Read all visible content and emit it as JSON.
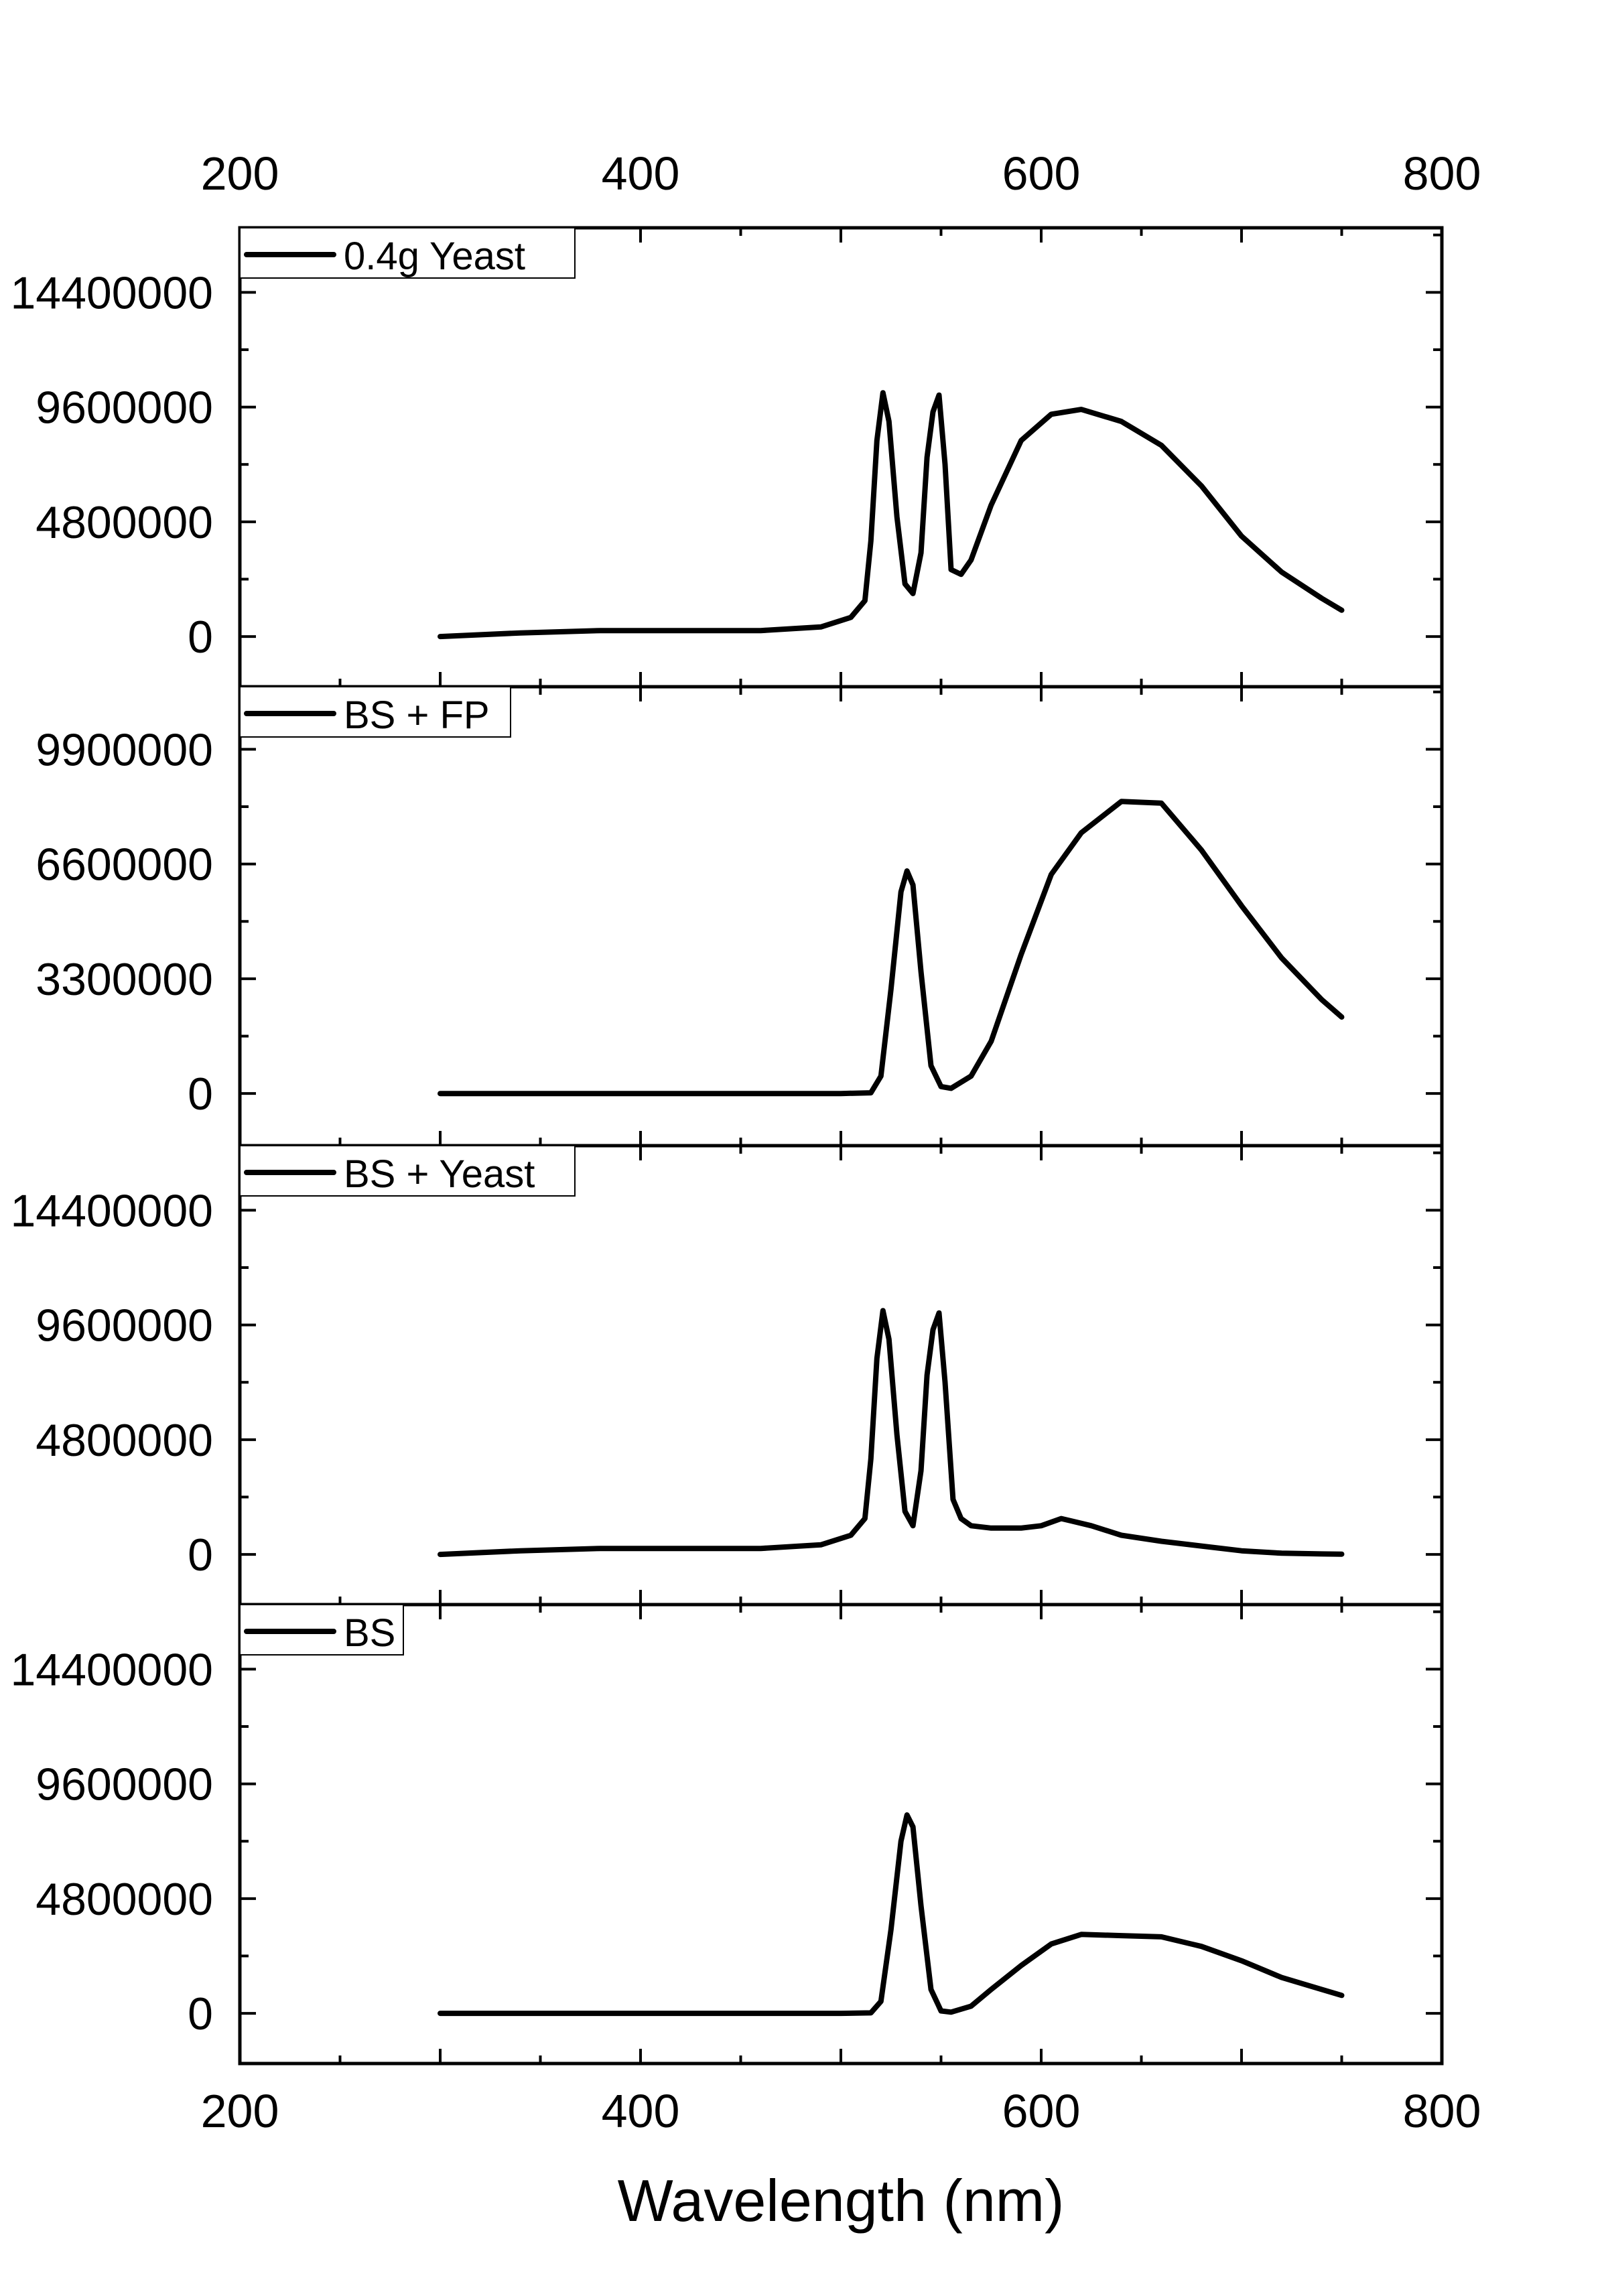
{
  "chart_data": {
    "type": "line",
    "xlabel": "Wavelength (nm)",
    "xlim": [
      200,
      800
    ],
    "x_ticks": [
      "200",
      "400",
      "600",
      "800"
    ],
    "grid": false,
    "line_color": "#000000",
    "panels": [
      {
        "legend": "0.4g Yeast",
        "ylim": [
          -2100000,
          17100000
        ],
        "y_ticks": [
          "0",
          "4800000",
          "9600000",
          "14400000"
        ],
        "y_tick_values": [
          0,
          4800000,
          9600000,
          14400000
        ],
        "series": [
          {
            "name": "0.4g Yeast",
            "x": [
              300,
              340,
              380,
              420,
              460,
              490,
              505,
              512,
              515,
              518,
              521,
              524,
              528,
              532,
              536,
              540,
              543,
              546,
              549,
              552,
              555,
              560,
              565,
              575,
              590,
              605,
              620,
              640,
              660,
              680,
              700,
              720,
              740,
              750
            ],
            "y": [
              0,
              150000,
              250000,
              250000,
              250000,
              400000,
              800000,
              1500000,
              4000000,
              8200000,
              10200000,
              9000000,
              5000000,
              2200000,
              1800000,
              3500000,
              7500000,
              9400000,
              10100000,
              7200000,
              2800000,
              2600000,
              3200000,
              5500000,
              8200000,
              9300000,
              9500000,
              9000000,
              8000000,
              6300000,
              4200000,
              2700000,
              1600000,
              1100000
            ]
          }
        ]
      },
      {
        "legend": "BS + FP",
        "ylim": [
          -1500000,
          11700000
        ],
        "y_ticks": [
          "0",
          "3300000",
          "6600000",
          "9900000"
        ],
        "y_tick_values": [
          0,
          3300000,
          6600000,
          9900000
        ],
        "series": [
          {
            "name": "BS + FP",
            "x": [
              300,
              400,
              500,
              515,
              520,
              525,
              530,
              533,
              536,
              540,
              545,
              550,
              555,
              565,
              575,
              590,
              605,
              620,
              640,
              660,
              680,
              700,
              720,
              740,
              750
            ],
            "y": [
              0,
              0,
              0,
              20000,
              500000,
              3000000,
              5800000,
              6400000,
              6000000,
              3500000,
              800000,
              200000,
              150000,
              500000,
              1500000,
              4000000,
              6300000,
              7500000,
              8400000,
              8350000,
              7000000,
              5400000,
              3900000,
              2700000,
              2200000
            ]
          }
        ]
      },
      {
        "legend": "BS + Yeast",
        "ylim": [
          -2100000,
          17100000
        ],
        "y_ticks": [
          "0",
          "4800000",
          "9600000",
          "14400000"
        ],
        "y_tick_values": [
          0,
          4800000,
          9600000,
          14400000
        ],
        "series": [
          {
            "name": "BS + Yeast",
            "x": [
              300,
              340,
              380,
              420,
              460,
              490,
              505,
              512,
              515,
              518,
              521,
              524,
              528,
              532,
              536,
              540,
              543,
              546,
              549,
              552,
              556,
              560,
              565,
              575,
              590,
              600,
              610,
              615,
              625,
              640,
              660,
              680,
              700,
              720,
              740,
              750
            ],
            "y": [
              0,
              150000,
              250000,
              250000,
              250000,
              400000,
              800000,
              1500000,
              4000000,
              8200000,
              10200000,
              9000000,
              5000000,
              1800000,
              1200000,
              3500000,
              7500000,
              9400000,
              10100000,
              7200000,
              2300000,
              1500000,
              1200000,
              1100000,
              1100000,
              1200000,
              1500000,
              1400000,
              1200000,
              800000,
              550000,
              350000,
              150000,
              50000,
              20000,
              10000
            ]
          }
        ]
      },
      {
        "legend": "BS",
        "ylim": [
          -2100000,
          17100000
        ],
        "y_ticks": [
          "0",
          "4800000",
          "9600000",
          "14400000"
        ],
        "y_tick_values": [
          0,
          4800000,
          9600000,
          14400000
        ],
        "series": [
          {
            "name": "BS",
            "x": [
              300,
              400,
              500,
              515,
              520,
              525,
              530,
              533,
              536,
              540,
              545,
              550,
              555,
              565,
              575,
              590,
              605,
              620,
              640,
              660,
              680,
              700,
              720,
              740,
              750
            ],
            "y": [
              0,
              0,
              0,
              20000,
              500000,
              3500000,
              7200000,
              8300000,
              7800000,
              4500000,
              1000000,
              100000,
              50000,
              300000,
              1000000,
              2000000,
              2900000,
              3300000,
              3250000,
              3200000,
              2800000,
              2200000,
              1500000,
              1000000,
              750000
            ]
          }
        ]
      }
    ]
  }
}
